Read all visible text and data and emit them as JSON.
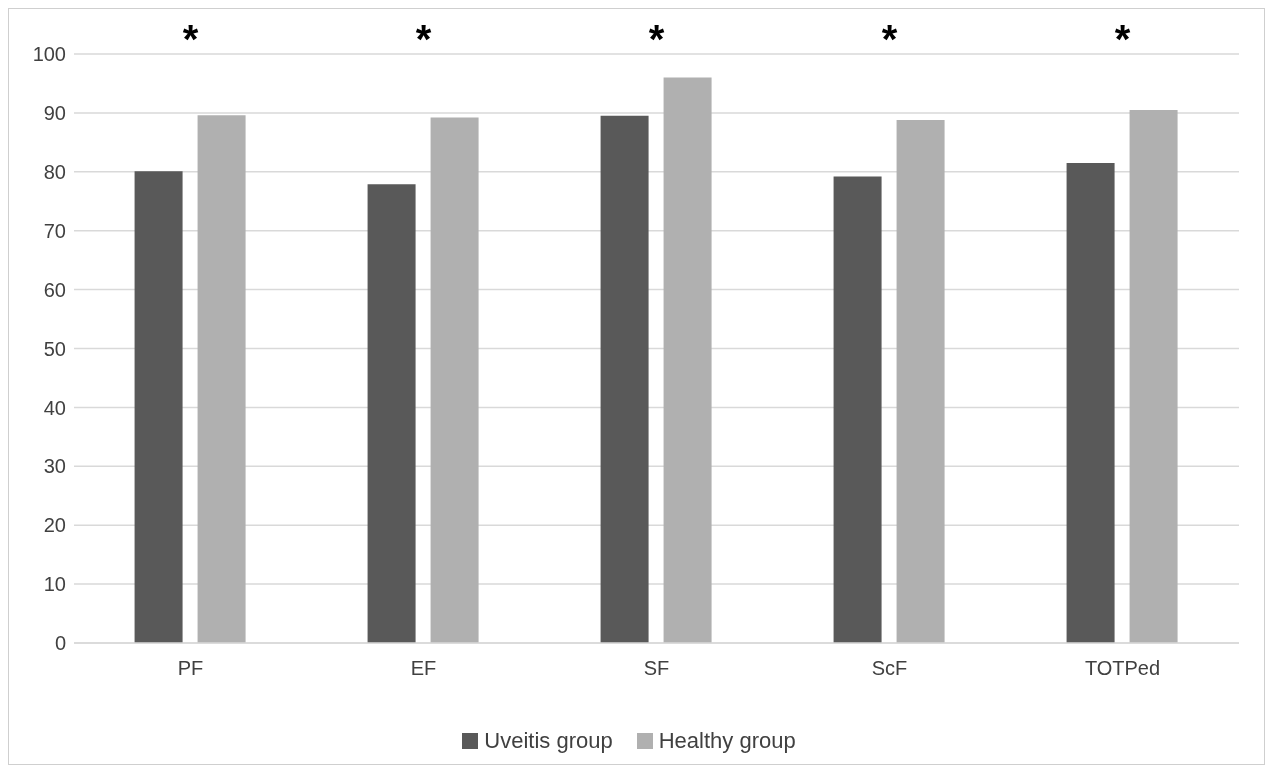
{
  "chart_data": {
    "type": "bar",
    "categories": [
      "PF",
      "EF",
      "SF",
      "ScF",
      "TOTPed"
    ],
    "series": [
      {
        "name": "Uveitis group",
        "color": "#595959",
        "values": [
          80.1,
          77.9,
          89.5,
          79.2,
          81.5
        ]
      },
      {
        "name": "Healthy group",
        "color": "#b0b0b0",
        "values": [
          89.6,
          89.2,
          96,
          88.8,
          90.5
        ]
      }
    ],
    "ylim": [
      0,
      100
    ],
    "yticks": [
      0,
      10,
      20,
      30,
      40,
      50,
      60,
      70,
      80,
      90,
      100
    ],
    "grid": "y",
    "legend": "bottom",
    "annotations": [
      "*",
      "*",
      "*",
      "*",
      "*"
    ]
  }
}
